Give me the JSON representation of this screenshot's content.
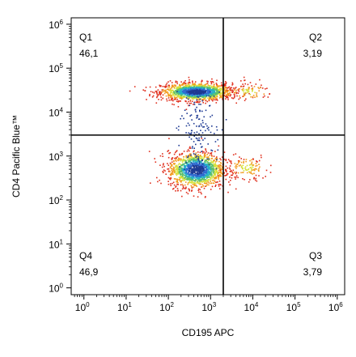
{
  "chart_data": {
    "type": "scatter",
    "title": "",
    "xlabel": "CD195 APC",
    "ylabel": "CD4 Pacific Blue™",
    "x_scale": "log",
    "y_scale": "log",
    "xlim": [
      0.5,
      1500000
    ],
    "ylim": [
      0.7,
      1400000
    ],
    "x_ticks": [
      {
        "base": "10",
        "exp": "0",
        "value": 1
      },
      {
        "base": "10",
        "exp": "1",
        "value": 10
      },
      {
        "base": "10",
        "exp": "2",
        "value": 100
      },
      {
        "base": "10",
        "exp": "3",
        "value": 1000
      },
      {
        "base": "10",
        "exp": "4",
        "value": 10000
      },
      {
        "base": "10",
        "exp": "5",
        "value": 100000
      },
      {
        "base": "10",
        "exp": "6",
        "value": 1000000
      }
    ],
    "y_ticks": [
      {
        "base": "10",
        "exp": "0",
        "value": 1
      },
      {
        "base": "10",
        "exp": "1",
        "value": 10
      },
      {
        "base": "10",
        "exp": "2",
        "value": 100
      },
      {
        "base": "10",
        "exp": "3",
        "value": 1000
      },
      {
        "base": "10",
        "exp": "4",
        "value": 10000
      },
      {
        "base": "10",
        "exp": "5",
        "value": 100000
      },
      {
        "base": "10",
        "exp": "6",
        "value": 1000000
      }
    ],
    "gate": {
      "x": 2000,
      "y": 3000
    },
    "quadrants": [
      {
        "name": "Q1",
        "value": "46,1",
        "position": "top-left"
      },
      {
        "name": "Q2",
        "value": "3,19",
        "position": "top-right"
      },
      {
        "name": "Q3",
        "value": "3,79",
        "position": "bottom-right"
      },
      {
        "name": "Q4",
        "value": "46,9",
        "position": "bottom-left"
      }
    ],
    "populations": [
      {
        "center_x": 450,
        "center_y": 30000,
        "spread_x_decades": 0.42,
        "spread_y_decades": 0.1,
        "share": 0.461
      },
      {
        "center_x": 450,
        "center_y": 500,
        "spread_x_decades": 0.33,
        "spread_y_decades": 0.2,
        "share": 0.469
      },
      {
        "center_x": 8000,
        "center_y": 30000,
        "spread_x_decades": 0.3,
        "spread_y_decades": 0.1,
        "share": 0.0319
      },
      {
        "center_x": 7000,
        "center_y": 550,
        "spread_x_decades": 0.25,
        "spread_y_decades": 0.15,
        "share": 0.0379
      }
    ],
    "density_colors": [
      "#1f3a93",
      "#2f6ad0",
      "#25b0c8",
      "#5cc06a",
      "#d6e03a",
      "#f29a1e",
      "#e0301e"
    ],
    "grid": false,
    "legend": "none"
  }
}
